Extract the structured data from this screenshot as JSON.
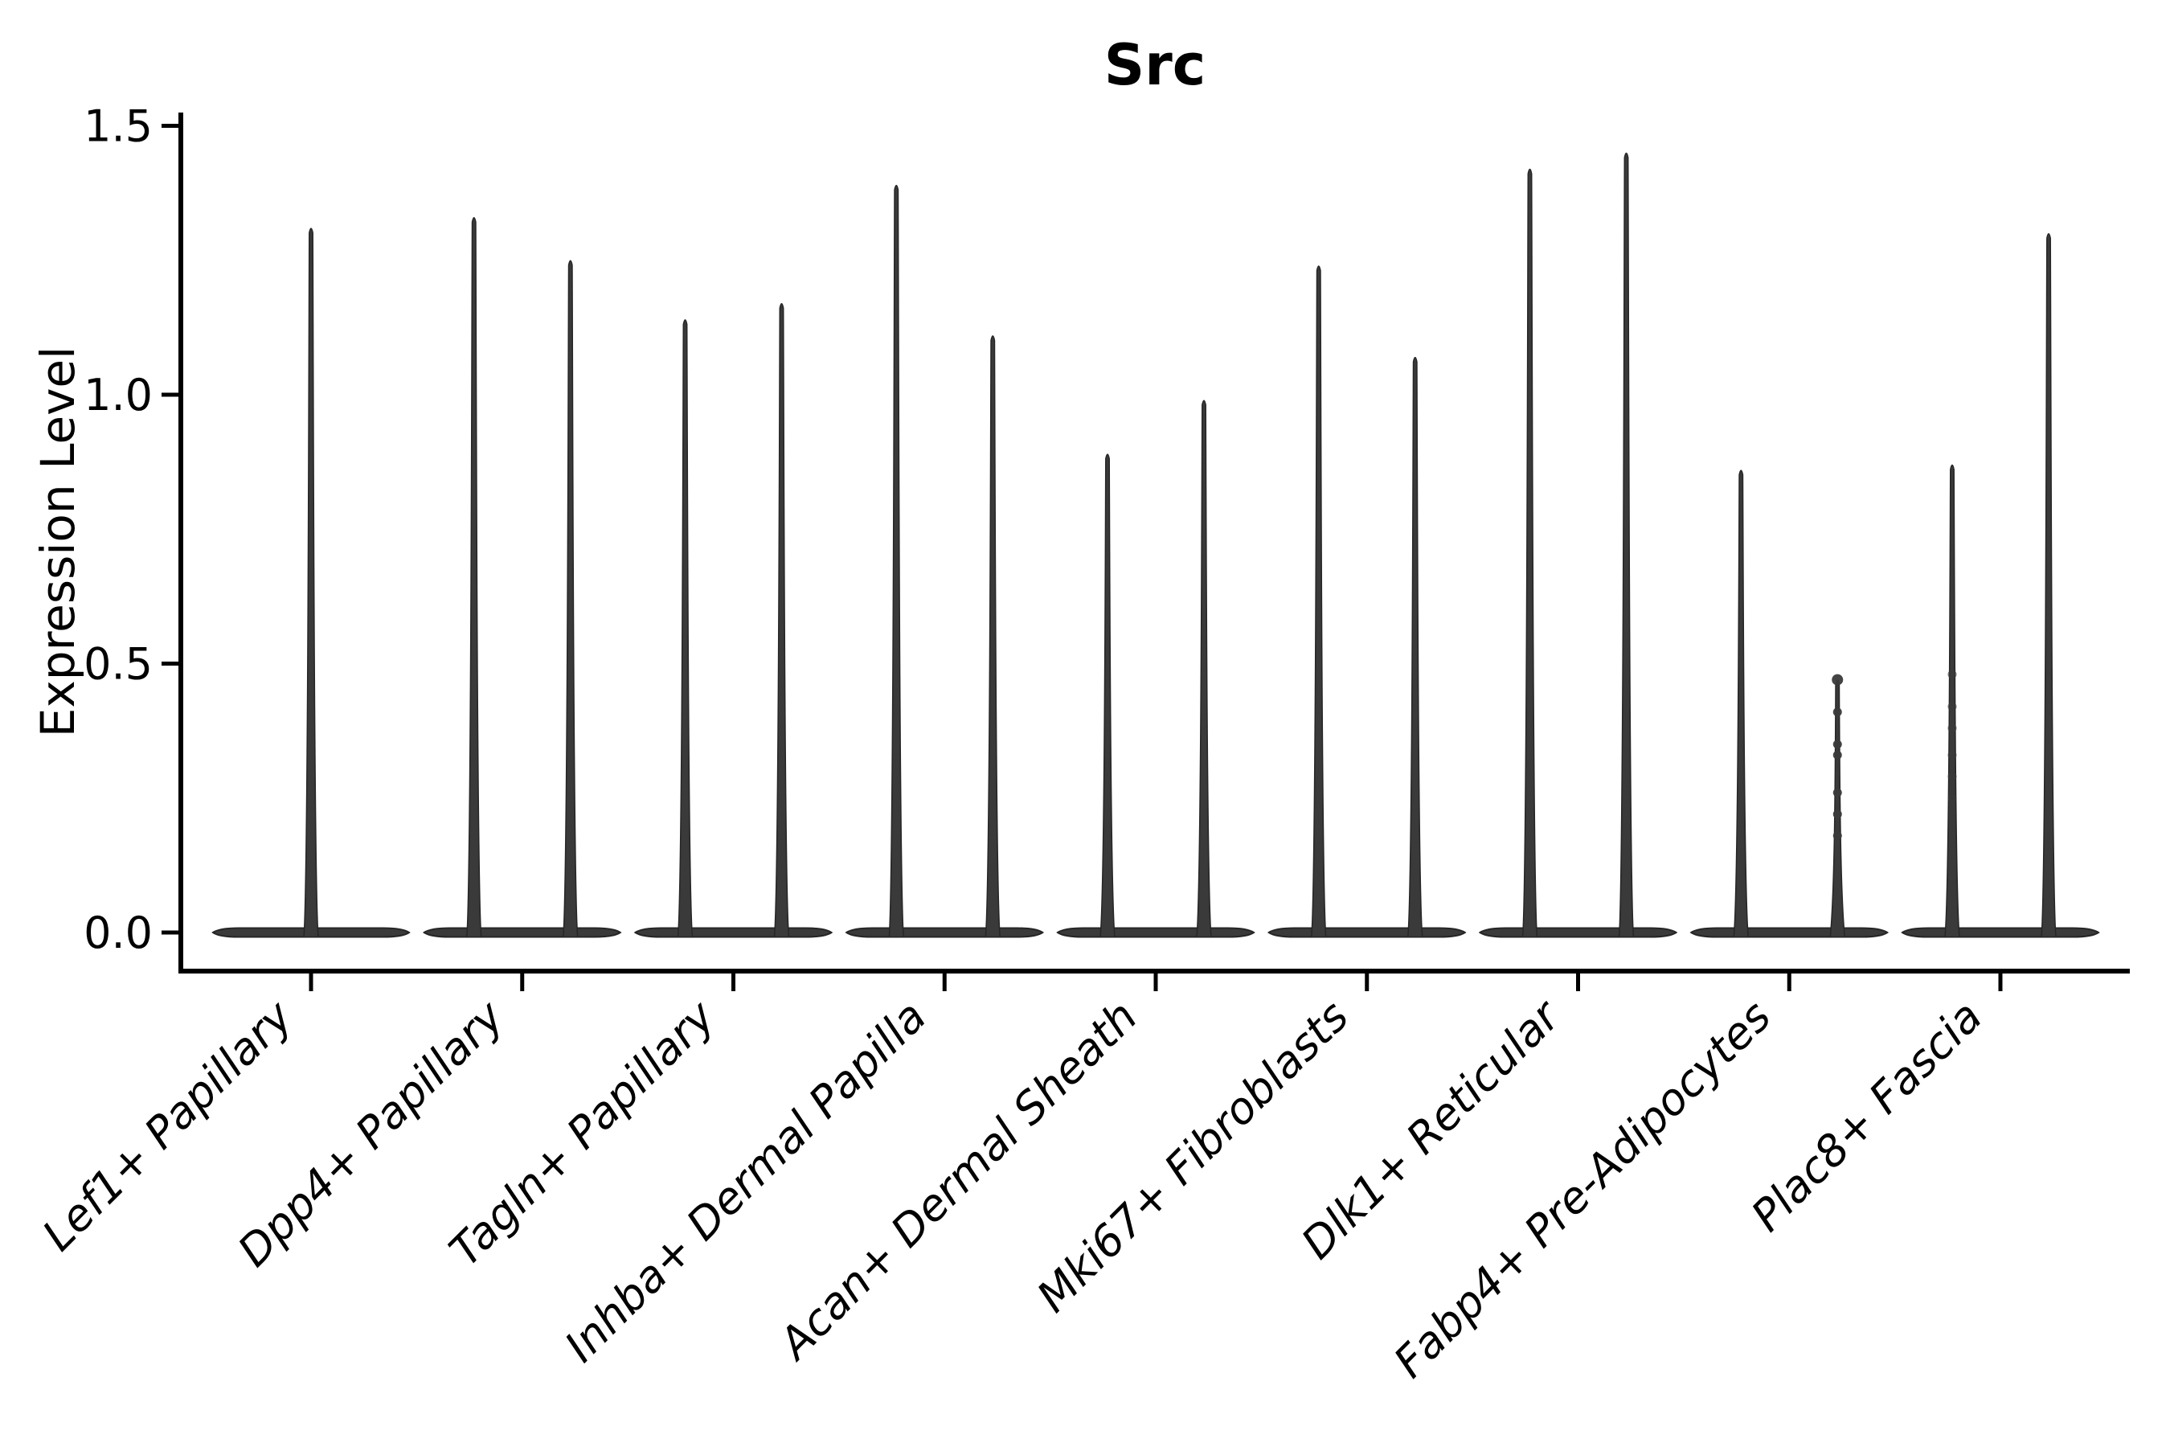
{
  "chart_data": {
    "type": "violin",
    "title": "Src",
    "ylabel": "Expression Level",
    "xlabel": "",
    "ylim": [
      0,
      1.5
    ],
    "y_ticks": [
      0.0,
      0.5,
      1.0,
      1.5
    ],
    "y_tick_labels": [
      "0.0",
      "0.5",
      "1.0",
      "1.5"
    ],
    "grid": false,
    "legend": "none",
    "categories": [
      "Lef1+ Papillary",
      "Dpp4+ Papillary",
      "Tagln+ Papillary",
      "Inhba+ Dermal Papilla",
      "Acan+ Dermal Sheath",
      "Mki67+ Fibroblasts",
      "Dlk1+ Reticular",
      "Fabp4+ Pre-Adipocytes",
      "Plac8+ Fascia"
    ],
    "violin_max_expression": [
      [
        1.31
      ],
      [
        1.33,
        1.25
      ],
      [
        1.14,
        1.17
      ],
      [
        1.39,
        1.11
      ],
      [
        0.89,
        0.99
      ],
      [
        1.24,
        1.07
      ],
      [
        1.42,
        1.45
      ],
      [
        0.86,
        0.47
      ],
      [
        0.87,
        1.3
      ]
    ],
    "visible_points": [
      {
        "category_index": 7,
        "violin_index": 1,
        "values": [
          0.47,
          0.41,
          0.35,
          0.33,
          0.26,
          0.22,
          0.18
        ],
        "faint": false
      },
      {
        "category_index": 8,
        "violin_index": 0,
        "values": [
          0.48,
          0.42,
          0.38,
          0.33,
          0.29,
          0.25
        ],
        "faint": true
      }
    ],
    "colors": {
      "violin_fill": "#3a3a3a",
      "violin_stroke": "#262626",
      "axis_color": "#000000",
      "text_color": "#000000",
      "background": "#ffffff"
    }
  }
}
